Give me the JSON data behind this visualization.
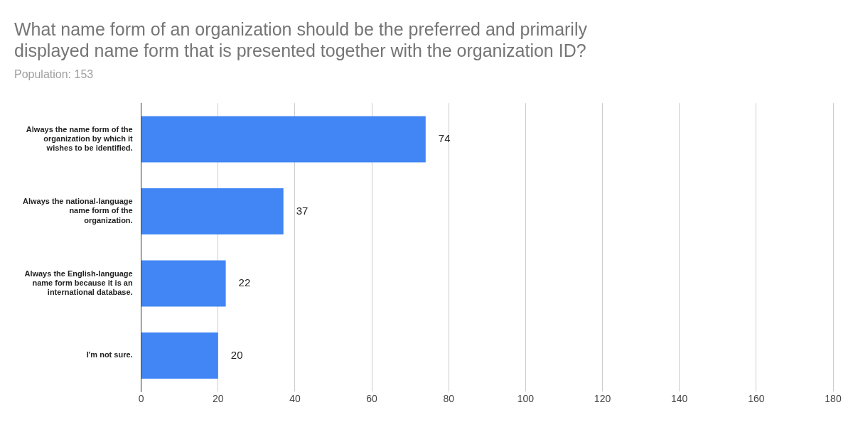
{
  "chart_data": {
    "type": "bar",
    "orientation": "horizontal",
    "title": "What name form of an organization should be the preferred and primarily displayed name form that is presented together with the organization ID?",
    "subtitle": "Population: 153",
    "categories": [
      "Always the name form of the organization by which it wishes to be identified.",
      "Always the national-language name form of the organization.",
      "Always the English-language name form because it is an international database.",
      "I'm not sure."
    ],
    "values": [
      74,
      37,
      22,
      20
    ],
    "color": "#4285f4",
    "xlim": [
      0,
      180
    ],
    "xticks": [
      0,
      20,
      40,
      60,
      80,
      100,
      120,
      140,
      160,
      180
    ],
    "grid": "x",
    "legend": false,
    "data_labels": true
  }
}
